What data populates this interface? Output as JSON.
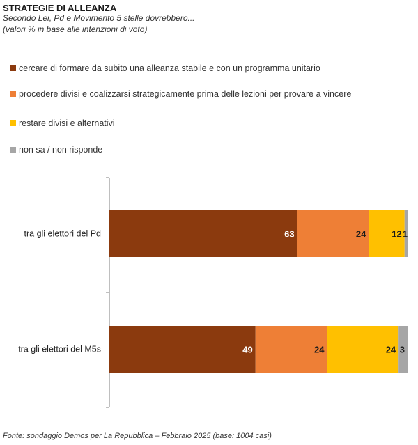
{
  "header": {
    "title": "STRATEGIE DI ALLEANZA",
    "subtitle": "Secondo Lei, Pd e Movimento 5 stelle dovrebbero...",
    "note": "(valori % in base alle intenzioni di voto)"
  },
  "footer": {
    "source": "Fonte: sondaggio Demos per La Repubblica – Febbraio 2025 (base: 1004 casi)"
  },
  "colors": {
    "s1": "#8B3A0E",
    "s2": "#EE7F36",
    "s3": "#FFC000",
    "s4": "#A6A6A6"
  },
  "chart_data": {
    "type": "bar",
    "orientation": "horizontal",
    "stacked": true,
    "title": "STRATEGIE DI ALLEANZA",
    "subtitle": "Secondo Lei, Pd e Movimento 5 stelle dovrebbero...",
    "categories": [
      "tra gli elettori del Pd",
      "tra gli elettori del M5s"
    ],
    "series": [
      {
        "name": "cercare di formare da subito una alleanza stabile e con un programma unitario",
        "values": [
          63,
          49
        ],
        "label_color": "#ffffff"
      },
      {
        "name": "procedere divisi e coalizzarsi strategicamente prima delle lezioni per provare a vincere",
        "values": [
          24,
          24
        ],
        "label_color": "#1a1a1a"
      },
      {
        "name": "restare divisi e alternativi",
        "values": [
          12,
          24
        ],
        "label_color": "#1a1a1a"
      },
      {
        "name": "non sa / non risponde",
        "values": [
          1,
          3
        ],
        "label_color": "#1a1a1a"
      }
    ],
    "xlim": [
      0,
      100
    ],
    "legend": "top",
    "grid": false
  }
}
